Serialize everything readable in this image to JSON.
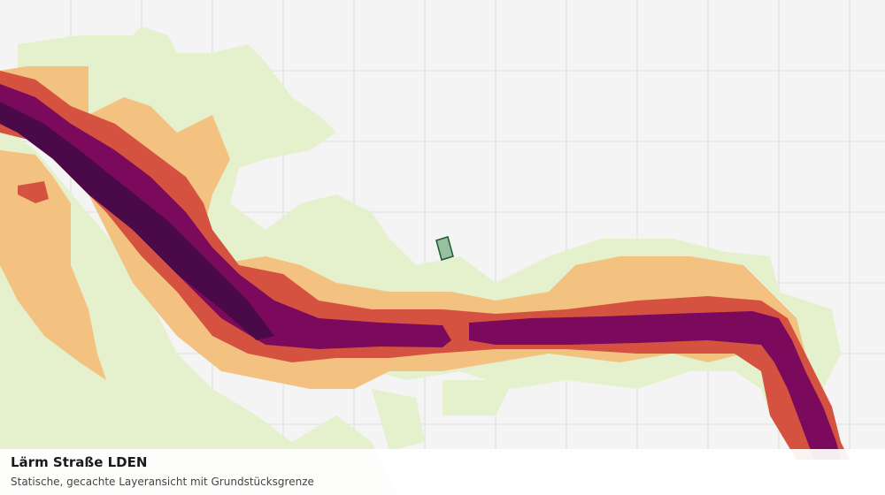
{
  "map": {
    "title": "Lärm Straße LDEN",
    "subtitle": "Statische, gecachte Layeransicht mit Grundstücksgrenze",
    "colors": {
      "background": "#f3f4f3",
      "grid": "#dcdedc",
      "noise_band_1": "#e4f1cc",
      "noise_band_2": "#f3c180",
      "noise_band_3": "#d4523f",
      "noise_band_4": "#7b0a5c",
      "noise_band_5": "#4a0a4a",
      "parcel_fill": "#96c0a0",
      "parcel_stroke": "#1f5a36"
    }
  }
}
